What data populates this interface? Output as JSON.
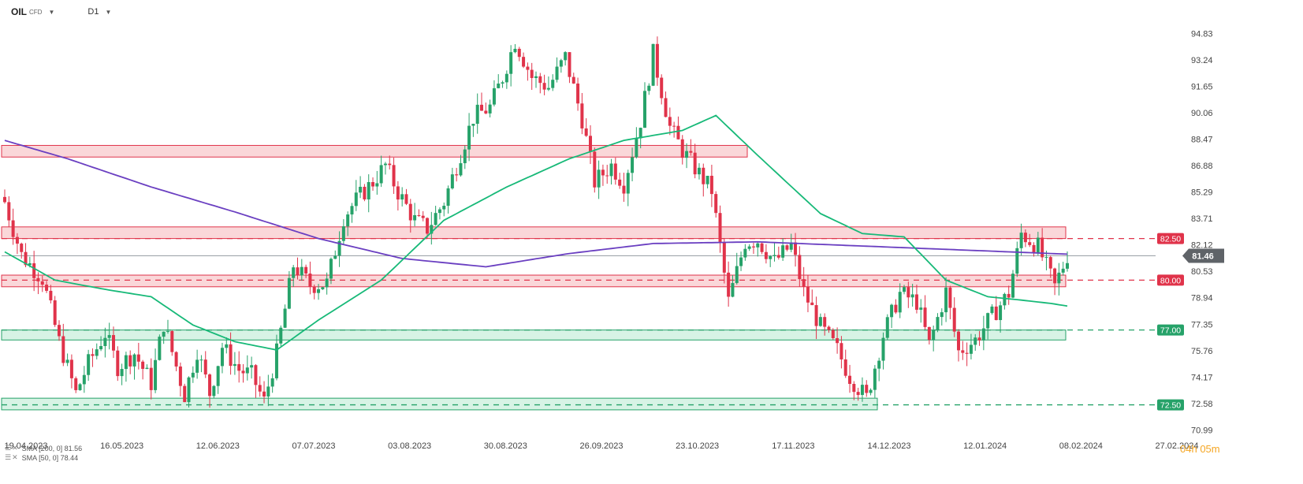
{
  "header": {
    "symbol": "OIL",
    "symbol_type": "CFD",
    "timeframe": "D1"
  },
  "indicators": [
    {
      "label": "SMA [200, 0] 81.56",
      "color": "#6a3fc1"
    },
    {
      "label": "SMA [50, 0] 78.44",
      "color": "#17b978"
    }
  ],
  "timer": {
    "hours": "04h",
    "minutes": "05m"
  },
  "colors": {
    "bull": "#26a269",
    "bear": "#e0334a",
    "resistance_zone": "#f8c9cc",
    "support_zone": "#c9efdc",
    "sma200": "#6a3fc1",
    "sma50": "#17b978",
    "current_price": "#5f6368"
  },
  "chart_data": {
    "type": "candlestick",
    "y_axis_ticks": [
      "94.83",
      "93.24",
      "91.65",
      "90.06",
      "88.47",
      "86.88",
      "85.29",
      "83.71",
      "82.12",
      "80.53",
      "78.94",
      "77.35",
      "75.76",
      "74.17",
      "72.58",
      "70.99"
    ],
    "x_axis_ticks": [
      "19.04.2023",
      "16.05.2023",
      "12.06.2023",
      "07.07.2023",
      "03.08.2023",
      "30.08.2023",
      "26.09.2023",
      "23.10.2023",
      "17.11.2023",
      "14.12.2023",
      "12.01.2024",
      "08.02.2024",
      "27.02.2024"
    ],
    "ylim": [
      70.3,
      95.8
    ],
    "current_price": {
      "value": 81.46,
      "label": "81.46"
    },
    "levels": [
      {
        "value": 82.5,
        "label": "82.50",
        "kind": "resistance"
      },
      {
        "value": 80.0,
        "label": "80.00",
        "kind": "resistance"
      },
      {
        "value": 77.0,
        "label": "77.00",
        "kind": "support"
      },
      {
        "value": 72.5,
        "label": "72.50",
        "kind": "support"
      }
    ],
    "zones": [
      {
        "kind": "resistance",
        "y_top": 88.1,
        "y_bottom": 87.4,
        "x_start": "19.04.2023",
        "x_end": "23.10.2023"
      },
      {
        "kind": "resistance",
        "y_top": 83.2,
        "y_bottom": 82.5,
        "x_start": "19.04.2023",
        "x_end": "08.02.2024"
      },
      {
        "kind": "resistance",
        "y_top": 80.3,
        "y_bottom": 79.6,
        "x_start": "19.04.2023",
        "x_end": "08.02.2024"
      },
      {
        "kind": "support",
        "y_top": 77.0,
        "y_bottom": 76.4,
        "x_start": "19.04.2023",
        "x_end": "08.02.2024"
      },
      {
        "kind": "support",
        "y_top": 72.9,
        "y_bottom": 72.2,
        "x_start": "19.04.2023",
        "x_end": "14.12.2023"
      }
    ],
    "close_path": [
      [
        0,
        84.7
      ],
      [
        4,
        81.5
      ],
      [
        9,
        80.1
      ],
      [
        13,
        76.3
      ],
      [
        17,
        73.2
      ],
      [
        20,
        75.0
      ],
      [
        24,
        76.8
      ],
      [
        27,
        74.8
      ],
      [
        31,
        75.6
      ],
      [
        35,
        73.8
      ],
      [
        38,
        77.4
      ],
      [
        43,
        73.1
      ],
      [
        46,
        75.8
      ],
      [
        49,
        73.2
      ],
      [
        52,
        76.0
      ],
      [
        56,
        74.6
      ],
      [
        59,
        74.3
      ],
      [
        62,
        72.7
      ],
      [
        65,
        75.6
      ],
      [
        69,
        80.9
      ],
      [
        73,
        79.7
      ],
      [
        77,
        79.8
      ],
      [
        81,
        83.8
      ],
      [
        84,
        84.8
      ],
      [
        88,
        85.9
      ],
      [
        91,
        86.9
      ],
      [
        94,
        85.3
      ],
      [
        98,
        83.6
      ],
      [
        101,
        83.1
      ],
      [
        105,
        84.7
      ],
      [
        108,
        86.9
      ],
      [
        112,
        89.8
      ],
      [
        116,
        90.4
      ],
      [
        119,
        92.2
      ],
      [
        122,
        94.4
      ],
      [
        126,
        92.2
      ],
      [
        130,
        91.6
      ],
      [
        134,
        93.4
      ],
      [
        138,
        89.7
      ],
      [
        141,
        85.9
      ],
      [
        145,
        86.9
      ],
      [
        148,
        85.8
      ],
      [
        152,
        89.6
      ],
      [
        155,
        93.6
      ],
      [
        159,
        89.2
      ],
      [
        162,
        87.8
      ],
      [
        166,
        86.4
      ],
      [
        169,
        85.4
      ],
      [
        173,
        78.7
      ],
      [
        177,
        82.3
      ],
      [
        180,
        82.4
      ],
      [
        184,
        81.1
      ],
      [
        188,
        82.1
      ],
      [
        191,
        79.3
      ],
      [
        195,
        77.2
      ],
      [
        199,
        75.8
      ],
      [
        202,
        74.2
      ],
      [
        206,
        72.9
      ],
      [
        210,
        76.7
      ],
      [
        214,
        79.2
      ],
      [
        218,
        78.7
      ],
      [
        221,
        76.1
      ],
      [
        225,
        79.3
      ],
      [
        228,
        75.7
      ],
      [
        232,
        76.4
      ],
      [
        235,
        77.5
      ],
      [
        240,
        79.2
      ],
      [
        243,
        82.8
      ],
      [
        247,
        82.0
      ],
      [
        251,
        79.6
      ],
      [
        254,
        81.5
      ]
    ],
    "sma_200": [
      [
        0,
        88.4
      ],
      [
        15,
        87.3
      ],
      [
        35,
        85.6
      ],
      [
        55,
        84.1
      ],
      [
        75,
        82.5
      ],
      [
        95,
        81.3
      ],
      [
        115,
        80.8
      ],
      [
        135,
        81.6
      ],
      [
        155,
        82.2
      ],
      [
        180,
        82.3
      ],
      [
        200,
        82.1
      ],
      [
        220,
        81.9
      ],
      [
        240,
        81.7
      ],
      [
        254,
        81.56
      ]
    ],
    "sma_50": [
      [
        0,
        81.7
      ],
      [
        12,
        80.0
      ],
      [
        25,
        79.4
      ],
      [
        35,
        79.0
      ],
      [
        45,
        77.3
      ],
      [
        55,
        76.3
      ],
      [
        65,
        75.8
      ],
      [
        75,
        77.6
      ],
      [
        90,
        80.0
      ],
      [
        105,
        83.6
      ],
      [
        120,
        85.6
      ],
      [
        135,
        87.3
      ],
      [
        148,
        88.4
      ],
      [
        162,
        89.0
      ],
      [
        170,
        89.9
      ],
      [
        180,
        87.5
      ],
      [
        195,
        84.0
      ],
      [
        205,
        82.8
      ],
      [
        215,
        82.6
      ],
      [
        225,
        80.0
      ],
      [
        235,
        79.0
      ],
      [
        243,
        78.8
      ],
      [
        250,
        78.6
      ],
      [
        254,
        78.44
      ]
    ]
  }
}
